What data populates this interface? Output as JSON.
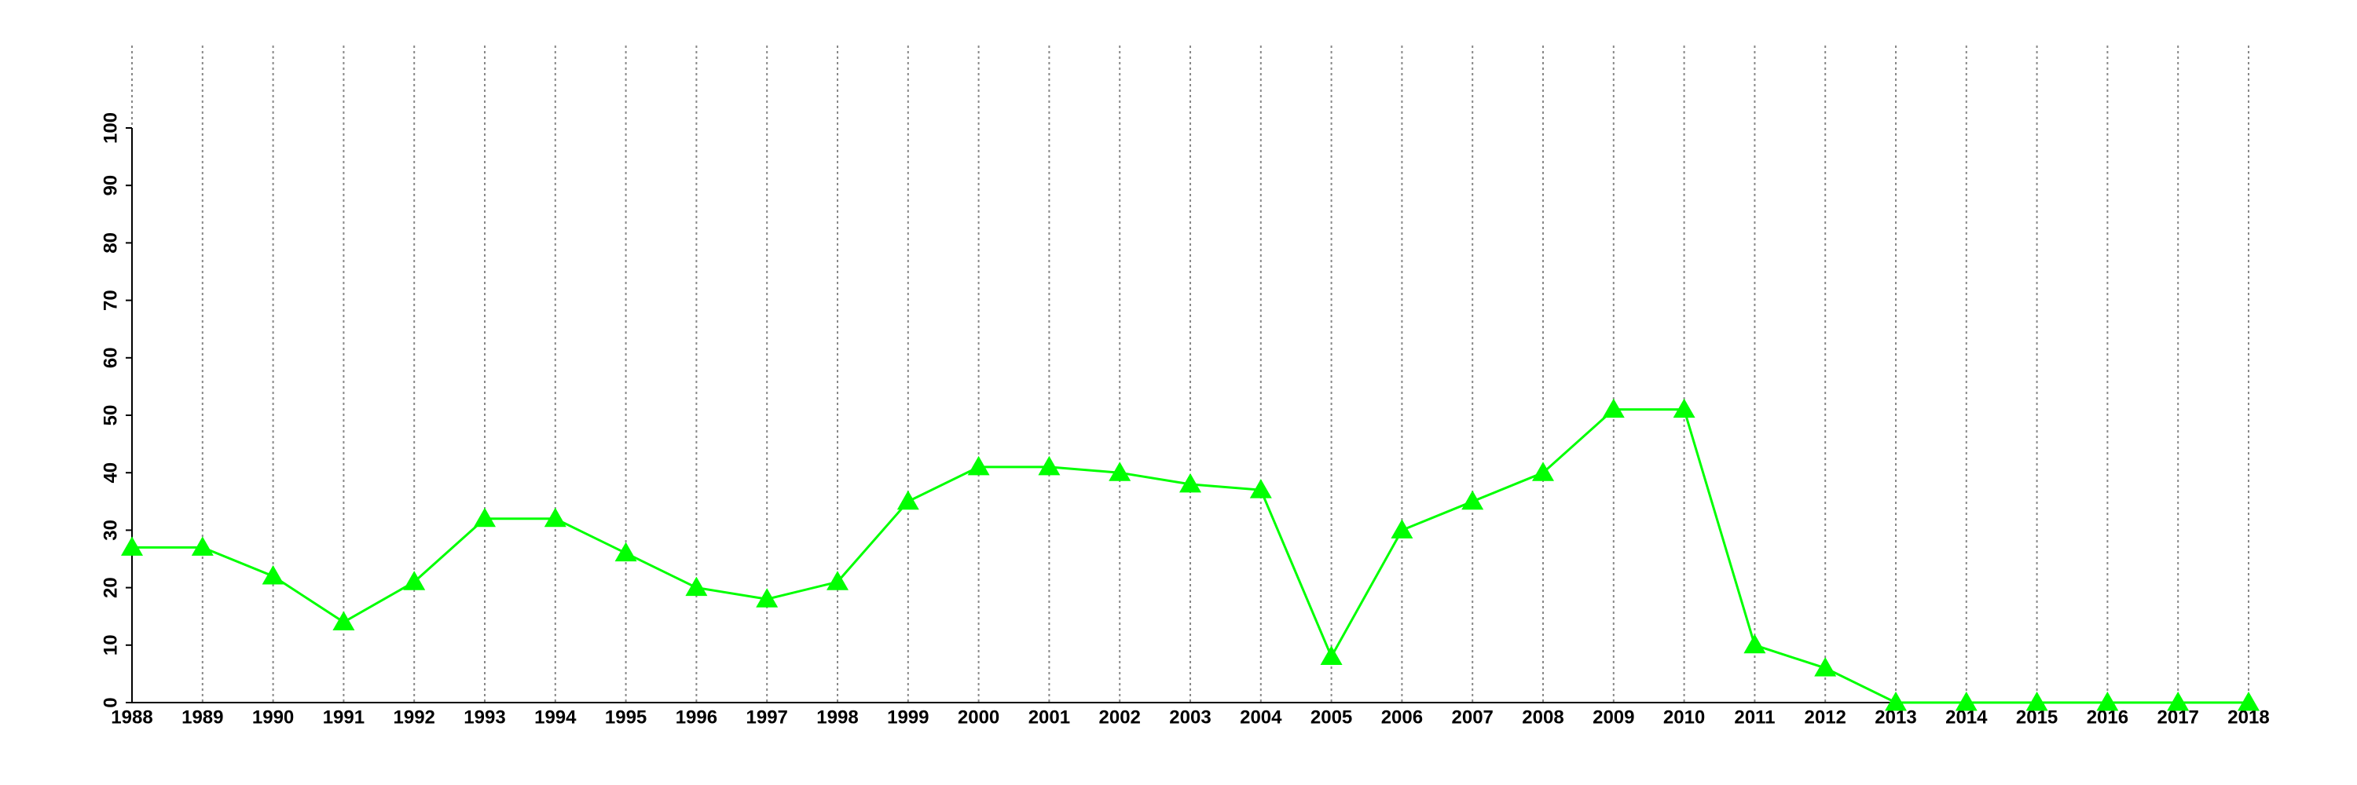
{
  "chart_data": {
    "type": "line",
    "categories": [
      "1988",
      "1989",
      "1990",
      "1991",
      "1992",
      "1993",
      "1994",
      "1995",
      "1996",
      "1997",
      "1998",
      "1999",
      "2000",
      "2001",
      "2002",
      "2003",
      "2004",
      "2005",
      "2006",
      "2007",
      "2008",
      "2009",
      "2010",
      "2011",
      "2012",
      "2013",
      "2014",
      "2015",
      "2016",
      "2017",
      "2018"
    ],
    "series": [
      {
        "color": "#00ff00",
        "values": [
          27,
          27,
          22,
          14,
          21,
          32,
          32,
          26,
          20,
          18,
          21,
          35,
          41,
          41,
          40,
          38,
          37,
          8,
          30,
          35,
          40,
          51,
          51,
          10,
          6,
          0,
          0,
          0,
          0,
          0,
          0
        ]
      }
    ],
    "ylim": [
      0,
      100
    ],
    "yticks": [
      0,
      10,
      20,
      30,
      40,
      50,
      60,
      70,
      80,
      90,
      100
    ],
    "grid": "x",
    "marker": "triangle"
  }
}
